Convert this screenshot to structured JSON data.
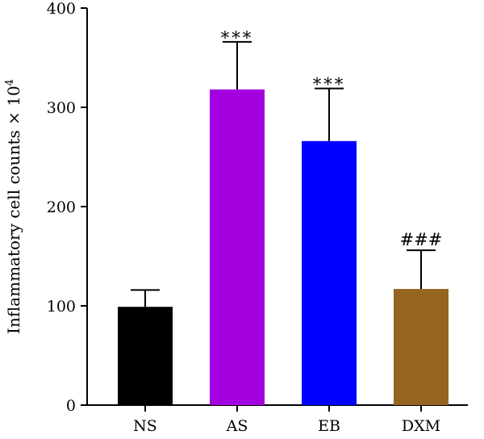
{
  "chart_data": {
    "type": "bar",
    "title": "",
    "xlabel": "",
    "ylabel": "Inflammatory cell counts × 10",
    "ylabel_superscript": "4",
    "ylim": [
      0,
      400
    ],
    "yticks": [
      0,
      100,
      200,
      300,
      400
    ],
    "ytick_labels": [
      "0",
      "100",
      "200",
      "300",
      "400"
    ],
    "categories": [
      "NS",
      "AS",
      "EB",
      "DXM"
    ],
    "values": [
      99,
      318,
      266,
      117
    ],
    "errors": [
      17,
      48,
      53,
      39
    ],
    "annotations": [
      "",
      "***",
      "***",
      "###"
    ],
    "colors": [
      "#000000",
      "#a400e0",
      "#0000ff",
      "#956421"
    ],
    "grid": false,
    "legend": "none"
  }
}
